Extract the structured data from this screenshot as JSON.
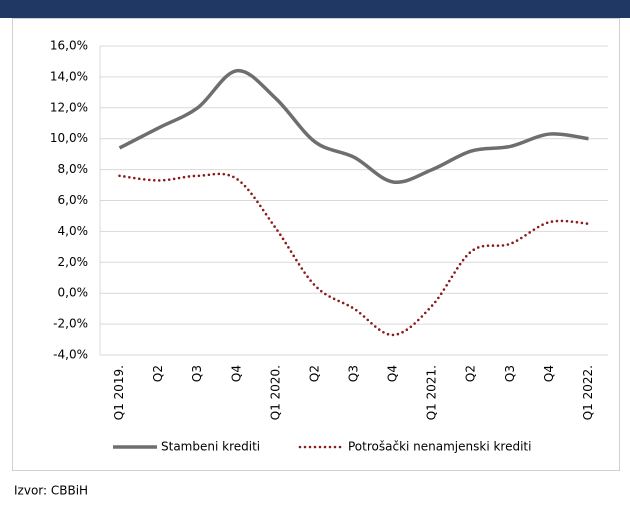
{
  "chart_data": {
    "type": "line",
    "categories": [
      "Q1 2019.",
      "Q2",
      "Q3",
      "Q4",
      "Q1 2020.",
      "Q2",
      "Q3",
      "Q4",
      "Q1 2021.",
      "Q2",
      "Q3",
      "Q4",
      "Q1 2022."
    ],
    "series": [
      {
        "name": "Stambeni krediti",
        "color": "#6e6e6e",
        "style": "solid",
        "values": [
          9.4,
          10.7,
          12.0,
          14.4,
          12.6,
          9.8,
          8.8,
          7.2,
          8.0,
          9.2,
          9.5,
          10.3,
          10.0
        ]
      },
      {
        "name": "Potrošački nenamjenski  krediti",
        "color": "#8b1a1a",
        "style": "dotted",
        "values": [
          7.6,
          7.3,
          7.6,
          7.4,
          4.2,
          0.5,
          -1.0,
          -2.7,
          -0.8,
          2.7,
          3.2,
          4.6,
          4.5
        ]
      }
    ],
    "ylim": [
      -4,
      16
    ],
    "yticks": [
      {
        "value": -4,
        "label": "-4,0%"
      },
      {
        "value": -2,
        "label": "-2,0%"
      },
      {
        "value": 0,
        "label": "0,0%"
      },
      {
        "value": 2,
        "label": "2,0%"
      },
      {
        "value": 4,
        "label": "4,0%"
      },
      {
        "value": 6,
        "label": "6,0%"
      },
      {
        "value": 8,
        "label": "8,0%"
      },
      {
        "value": 10,
        "label": "10,0%"
      },
      {
        "value": 12,
        "label": "12,0%"
      },
      {
        "value": 14,
        "label": "14,0%"
      },
      {
        "value": 16,
        "label": "16,0%"
      }
    ],
    "grid": true,
    "legend": "bottom",
    "source": "Izvor: CBBiH"
  }
}
